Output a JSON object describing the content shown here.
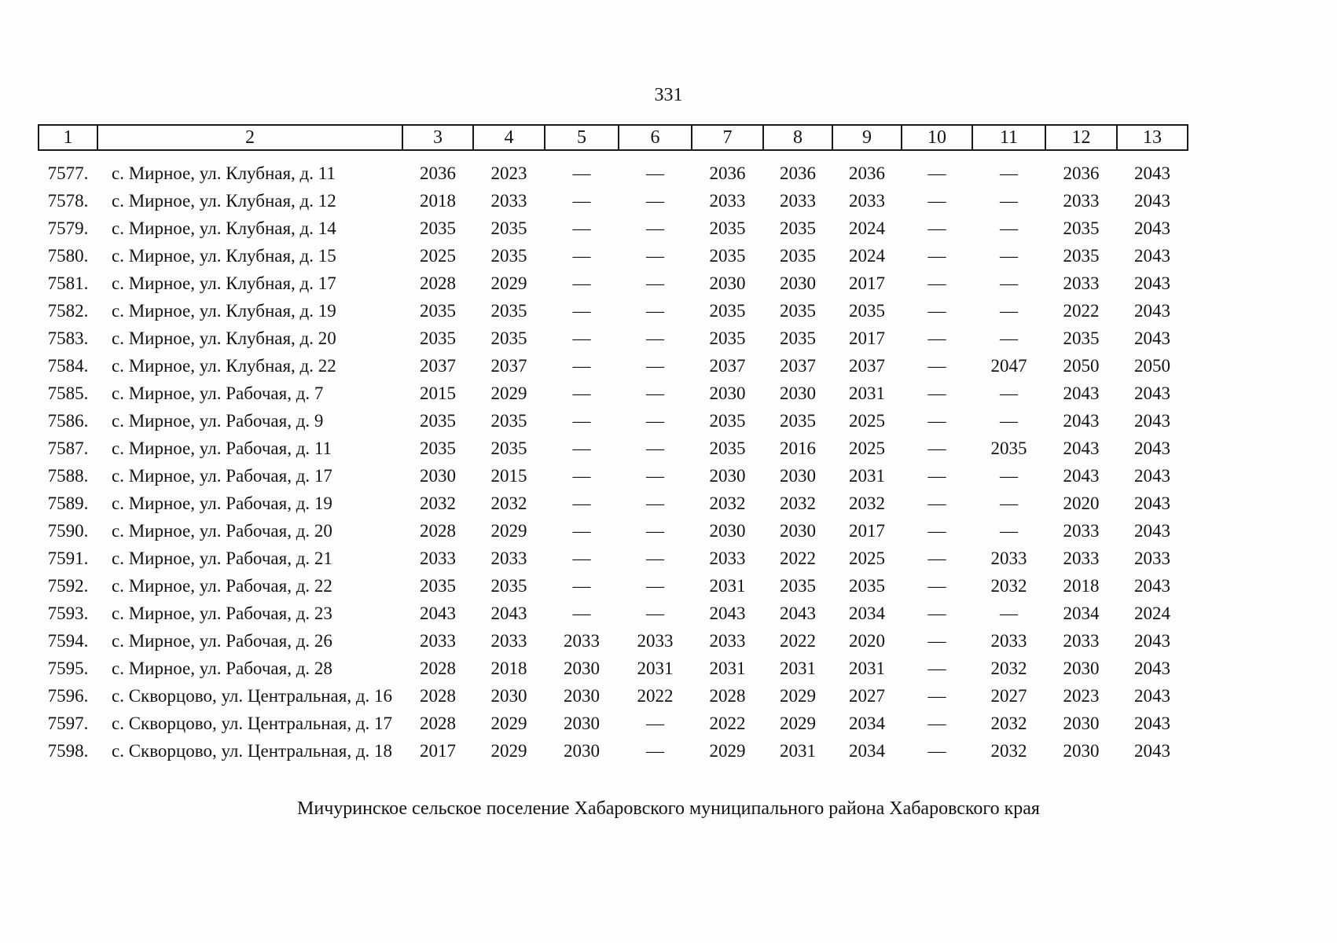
{
  "page": {
    "number": "331",
    "footer": "Мичуринское сельское поселение Хабаровского муниципального района Хабаровского края"
  },
  "table": {
    "headers": [
      "1",
      "2",
      "3",
      "4",
      "5",
      "6",
      "7",
      "8",
      "9",
      "10",
      "11",
      "12",
      "13"
    ],
    "rows": [
      {
        "num": "7577.",
        "address": "с. Мирное, ул. Клубная, д. 11",
        "values": [
          "2036",
          "2023",
          "—",
          "—",
          "2036",
          "2036",
          "2036",
          "—",
          "—",
          "2036",
          "2043"
        ]
      },
      {
        "num": "7578.",
        "address": "с. Мирное, ул. Клубная, д. 12",
        "values": [
          "2018",
          "2033",
          "—",
          "—",
          "2033",
          "2033",
          "2033",
          "—",
          "—",
          "2033",
          "2043"
        ]
      },
      {
        "num": "7579.",
        "address": "с. Мирное, ул. Клубная, д. 14",
        "values": [
          "2035",
          "2035",
          "—",
          "—",
          "2035",
          "2035",
          "2024",
          "—",
          "—",
          "2035",
          "2043"
        ]
      },
      {
        "num": "7580.",
        "address": "с. Мирное, ул. Клубная, д. 15",
        "values": [
          "2025",
          "2035",
          "—",
          "—",
          "2035",
          "2035",
          "2024",
          "—",
          "—",
          "2035",
          "2043"
        ]
      },
      {
        "num": "7581.",
        "address": "с. Мирное, ул. Клубная, д. 17",
        "values": [
          "2028",
          "2029",
          "—",
          "—",
          "2030",
          "2030",
          "2017",
          "—",
          "—",
          "2033",
          "2043"
        ]
      },
      {
        "num": "7582.",
        "address": "с. Мирное, ул. Клубная, д. 19",
        "values": [
          "2035",
          "2035",
          "—",
          "—",
          "2035",
          "2035",
          "2035",
          "—",
          "—",
          "2022",
          "2043"
        ]
      },
      {
        "num": "7583.",
        "address": "с. Мирное, ул. Клубная, д. 20",
        "values": [
          "2035",
          "2035",
          "—",
          "—",
          "2035",
          "2035",
          "2017",
          "—",
          "—",
          "2035",
          "2043"
        ]
      },
      {
        "num": "7584.",
        "address": "с. Мирное, ул. Клубная, д. 22",
        "values": [
          "2037",
          "2037",
          "—",
          "—",
          "2037",
          "2037",
          "2037",
          "—",
          "2047",
          "2050",
          "2050"
        ]
      },
      {
        "num": "7585.",
        "address": "с. Мирное, ул. Рабочая, д. 7",
        "values": [
          "2015",
          "2029",
          "—",
          "—",
          "2030",
          "2030",
          "2031",
          "—",
          "—",
          "2043",
          "2043"
        ]
      },
      {
        "num": "7586.",
        "address": "с. Мирное, ул. Рабочая, д. 9",
        "values": [
          "2035",
          "2035",
          "—",
          "—",
          "2035",
          "2035",
          "2025",
          "—",
          "—",
          "2043",
          "2043"
        ]
      },
      {
        "num": "7587.",
        "address": "с. Мирное, ул. Рабочая, д. 11",
        "values": [
          "2035",
          "2035",
          "—",
          "—",
          "2035",
          "2016",
          "2025",
          "—",
          "2035",
          "2043",
          "2043"
        ]
      },
      {
        "num": "7588.",
        "address": "с. Мирное, ул. Рабочая, д. 17",
        "values": [
          "2030",
          "2015",
          "—",
          "—",
          "2030",
          "2030",
          "2031",
          "—",
          "—",
          "2043",
          "2043"
        ]
      },
      {
        "num": "7589.",
        "address": "с. Мирное, ул. Рабочая, д. 19",
        "values": [
          "2032",
          "2032",
          "—",
          "—",
          "2032",
          "2032",
          "2032",
          "—",
          "—",
          "2020",
          "2043"
        ]
      },
      {
        "num": "7590.",
        "address": "с. Мирное, ул. Рабочая, д. 20",
        "values": [
          "2028",
          "2029",
          "—",
          "—",
          "2030",
          "2030",
          "2017",
          "—",
          "—",
          "2033",
          "2043"
        ]
      },
      {
        "num": "7591.",
        "address": "с. Мирное, ул. Рабочая, д. 21",
        "values": [
          "2033",
          "2033",
          "—",
          "—",
          "2033",
          "2022",
          "2025",
          "—",
          "2033",
          "2033",
          "2033"
        ]
      },
      {
        "num": "7592.",
        "address": "с. Мирное, ул. Рабочая, д. 22",
        "values": [
          "2035",
          "2035",
          "—",
          "—",
          "2031",
          "2035",
          "2035",
          "—",
          "2032",
          "2018",
          "2043"
        ]
      },
      {
        "num": "7593.",
        "address": "с. Мирное, ул. Рабочая, д. 23",
        "values": [
          "2043",
          "2043",
          "—",
          "—",
          "2043",
          "2043",
          "2034",
          "—",
          "—",
          "2034",
          "2024"
        ]
      },
      {
        "num": "7594.",
        "address": "с. Мирное, ул. Рабочая, д. 26",
        "values": [
          "2033",
          "2033",
          "2033",
          "2033",
          "2033",
          "2022",
          "2020",
          "—",
          "2033",
          "2033",
          "2043"
        ]
      },
      {
        "num": "7595.",
        "address": "с. Мирное, ул. Рабочая, д. 28",
        "values": [
          "2028",
          "2018",
          "2030",
          "2031",
          "2031",
          "2031",
          "2031",
          "—",
          "2032",
          "2030",
          "2043"
        ]
      },
      {
        "num": "7596.",
        "address": "с. Скворцово, ул. Центральная, д. 16",
        "values": [
          "2028",
          "2030",
          "2030",
          "2022",
          "2028",
          "2029",
          "2027",
          "—",
          "2027",
          "2023",
          "2043"
        ]
      },
      {
        "num": "7597.",
        "address": "с. Скворцово, ул. Центральная, д. 17",
        "values": [
          "2028",
          "2029",
          "2030",
          "—",
          "2022",
          "2029",
          "2034",
          "—",
          "2032",
          "2030",
          "2043"
        ]
      },
      {
        "num": "7598.",
        "address": "с. Скворцово, ул. Центральная, д. 18",
        "values": [
          "2017",
          "2029",
          "2030",
          "—",
          "2029",
          "2031",
          "2034",
          "—",
          "2032",
          "2030",
          "2043"
        ]
      }
    ]
  }
}
